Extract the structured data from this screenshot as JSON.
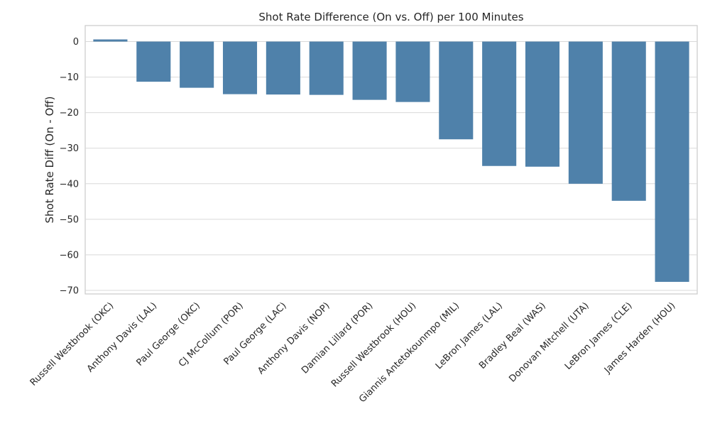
{
  "chart_data": {
    "type": "bar",
    "title": "Shot Rate Difference (On vs. Off) per 100 Minutes",
    "xlabel": "",
    "ylabel": "Shot Rate Diff (On - Off)",
    "ylim": [
      -71,
      4.5
    ],
    "yticks": [
      0,
      -10,
      -20,
      -30,
      -40,
      -50,
      -60,
      -70
    ],
    "ytick_labels": [
      "0",
      "−10",
      "−20",
      "−30",
      "−40",
      "−50",
      "−60",
      "−70"
    ],
    "grid": true,
    "legend": "none",
    "bar_color": "#4f81aa",
    "categories": [
      "Russell Westbrook (OKC)",
      "Anthony Davis (LAL)",
      "Paul George (OKC)",
      "CJ McCollum (POR)",
      "Paul George (LAC)",
      "Anthony Davis (NOP)",
      "Damian Lillard (POR)",
      "Russell Westbrook (HOU)",
      "Giannis Antetokounmpo (MIL)",
      "LeBron James (LAL)",
      "Bradley Beal (WAS)",
      "Donovan Mitchell (UTA)",
      "LeBron James (CLE)",
      "James Harden (HOU)"
    ],
    "values": [
      0.6,
      -11.3,
      -13.0,
      -14.8,
      -14.9,
      -15.0,
      -16.4,
      -17.0,
      -27.5,
      -35.0,
      -35.2,
      -40.0,
      -44.8,
      -67.6
    ]
  }
}
